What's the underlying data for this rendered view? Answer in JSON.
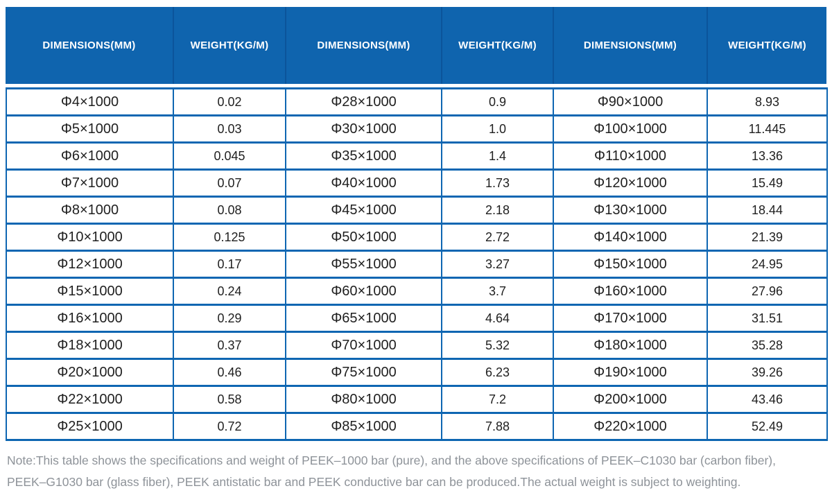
{
  "table": {
    "columns": [
      {
        "label": "DIMENSIONS(MM)"
      },
      {
        "label": "WEIGHT(KG/M)"
      },
      {
        "label": "DIMENSIONS(MM)"
      },
      {
        "label": "WEIGHT(KG/M)"
      },
      {
        "label": "DIMENSIONS(MM)"
      },
      {
        "label": "WEIGHT(KG/M)"
      }
    ],
    "rows": [
      [
        "Φ4×1000",
        "0.02",
        "Φ28×1000",
        "0.9",
        "Φ90×1000",
        "8.93"
      ],
      [
        "Φ5×1000",
        "0.03",
        "Φ30×1000",
        "1.0",
        "Φ100×1000",
        "11.445"
      ],
      [
        "Φ6×1000",
        "0.045",
        "Φ35×1000",
        "1.4",
        "Φ110×1000",
        "13.36"
      ],
      [
        "Φ7×1000",
        "0.07",
        "Φ40×1000",
        "1.73",
        "Φ120×1000",
        "15.49"
      ],
      [
        "Φ8×1000",
        "0.08",
        "Φ45×1000",
        "2.18",
        "Φ130×1000",
        "18.44"
      ],
      [
        "Φ10×1000",
        "0.125",
        "Φ50×1000",
        "2.72",
        "Φ140×1000",
        "21.39"
      ],
      [
        "Φ12×1000",
        "0.17",
        "Φ55×1000",
        "3.27",
        "Φ150×1000",
        "24.95"
      ],
      [
        "Φ15×1000",
        "0.24",
        "Φ60×1000",
        "3.7",
        "Φ160×1000",
        "27.96"
      ],
      [
        "Φ16×1000",
        "0.29",
        "Φ65×1000",
        "4.64",
        "Φ170×1000",
        "31.51"
      ],
      [
        "Φ18×1000",
        "0.37",
        "Φ70×1000",
        "5.32",
        "Φ180×1000",
        "35.28"
      ],
      [
        "Φ20×1000",
        "0.46",
        "Φ75×1000",
        "6.23",
        "Φ190×1000",
        "39.26"
      ],
      [
        "Φ22×1000",
        "0.58",
        "Φ80×1000",
        "7.2",
        "Φ200×1000",
        "43.46"
      ],
      [
        "Φ25×1000",
        "0.72",
        "Φ85×1000",
        "7.88",
        "Φ220×1000",
        "52.49"
      ]
    ]
  },
  "note": {
    "line1": "Note:This table shows the specifications and weight of PEEK–1000 bar (pure), and the above specifications of PEEK–C1030 bar (carbon fiber),",
    "line2": "PEEK–G1030 bar (glass fiber), PEEK antistatic bar and PEEK conductive bar can be produced.The actual weight is subject to weighting."
  },
  "colors": {
    "header_bg": "#0f64ae",
    "header_sep": "#0b549b",
    "header_text": "#ffffff",
    "border": "#0e66b2",
    "body_text": "#1f1f1f",
    "note_text": "#8e9399",
    "page_bg": "#ffffff"
  }
}
